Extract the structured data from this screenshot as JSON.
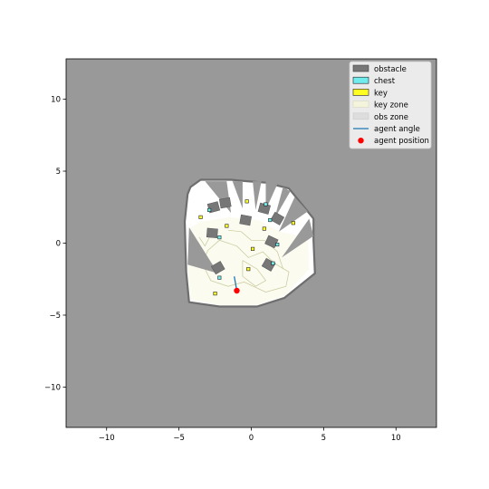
{
  "chart_data": {
    "type": "scatter",
    "title": "",
    "xlabel": "",
    "ylabel": "",
    "xlim": [
      -12.8,
      12.8
    ],
    "ylim": [
      -12.8,
      12.8
    ],
    "x_ticks": [
      -10,
      -5,
      0,
      5,
      10
    ],
    "y_ticks": [
      10,
      5,
      0,
      -5,
      -10
    ],
    "x_tick_labels": [
      "−10",
      "−5",
      "0",
      "5",
      "10"
    ],
    "y_tick_labels": [
      "10",
      "5",
      "0",
      "−5",
      "−10"
    ],
    "grid": false,
    "legend_position": "top-right",
    "legend": [
      {
        "label": "obstacle",
        "kind": "patch",
        "fill": "#777777",
        "stroke": "#444444"
      },
      {
        "label": "chest",
        "kind": "patch",
        "fill": "#70ecec",
        "stroke": "#222222"
      },
      {
        "label": "key",
        "kind": "patch",
        "fill": "#ffff22",
        "stroke": "#222222"
      },
      {
        "label": "key zone",
        "kind": "patch",
        "fill": "#f4f4dc",
        "stroke": "#d8d8c0"
      },
      {
        "label": "obs zone",
        "kind": "patch",
        "fill": "#dddddd",
        "stroke": "#cccccc"
      },
      {
        "label": "agent angle",
        "kind": "line",
        "stroke": "#1f77b4"
      },
      {
        "label": "agent position",
        "kind": "dot",
        "fill": "#ff0000"
      }
    ],
    "colors": {
      "background": "#999999",
      "free_space": "#ffffff",
      "wall": "#6e6e6e",
      "obstacle": "#777777",
      "key_zone_contour": "#c8c89a"
    },
    "boundary": [
      [
        -4.2,
        3.9
      ],
      [
        -3.5,
        4.4
      ],
      [
        -1.4,
        4.4
      ],
      [
        -0.3,
        4.3
      ],
      [
        1.0,
        4.2
      ],
      [
        2.6,
        3.8
      ],
      [
        3.9,
        2.2
      ],
      [
        4.3,
        1.7
      ],
      [
        4.3,
        0.2
      ],
      [
        4.4,
        -2.1
      ],
      [
        2.3,
        -3.8
      ],
      [
        0.4,
        -4.4
      ],
      [
        -2.2,
        -4.4
      ],
      [
        -4.3,
        -4.1
      ],
      [
        -4.5,
        -2.0
      ],
      [
        -4.6,
        1.5
      ],
      [
        -4.4,
        3.4
      ]
    ],
    "key_zone": [
      [
        -4.3,
        1.0
      ],
      [
        -3.5,
        1.5
      ],
      [
        -1.5,
        1.8
      ],
      [
        0.5,
        1.6
      ],
      [
        2.0,
        0.8
      ],
      [
        3.3,
        0.5
      ],
      [
        3.9,
        0.5
      ],
      [
        4.0,
        -1.8
      ],
      [
        2.4,
        -3.6
      ],
      [
        0.4,
        -4.3
      ],
      [
        -2.2,
        -4.3
      ],
      [
        -4.2,
        -3.9
      ],
      [
        -4.4,
        -1.8
      ]
    ],
    "obstacle_zone_wedges": [
      [
        [
          -4.4,
          -1.5
        ],
        [
          -4.3,
          1.1
        ],
        [
          -2.3,
          -2.1
        ]
      ],
      [
        [
          -3.2,
          4.3
        ],
        [
          -1.7,
          4.3
        ],
        [
          -1.4,
          2.1
        ]
      ],
      [
        [
          -1.3,
          4.3
        ],
        [
          -0.6,
          4.3
        ],
        [
          -0.6,
          2.4
        ]
      ],
      [
        [
          0.1,
          4.3
        ],
        [
          0.7,
          4.3
        ],
        [
          0.3,
          2.3
        ]
      ],
      [
        [
          1.0,
          4.3
        ],
        [
          1.8,
          4.1
        ],
        [
          1.0,
          2.3
        ]
      ],
      [
        [
          2.2,
          3.9
        ],
        [
          2.7,
          3.6
        ],
        [
          1.6,
          1.7
        ]
      ],
      [
        [
          3.0,
          3.2
        ],
        [
          3.9,
          2.2
        ],
        [
          1.9,
          0.8
        ]
      ],
      [
        [
          4.0,
          1.7
        ],
        [
          4.3,
          0.5
        ],
        [
          2.1,
          -1.0
        ]
      ]
    ],
    "obstacles": [
      {
        "x": -1.8,
        "y": 2.8,
        "angle": 10
      },
      {
        "x": -2.6,
        "y": 2.5,
        "angle": 15
      },
      {
        "x": -2.7,
        "y": 0.7,
        "angle": -5
      },
      {
        "x": -2.3,
        "y": -1.7,
        "angle": 30
      },
      {
        "x": -0.4,
        "y": 1.6,
        "angle": -10
      },
      {
        "x": 0.9,
        "y": 2.4,
        "angle": -15
      },
      {
        "x": 1.8,
        "y": 1.7,
        "angle": -30
      },
      {
        "x": 1.4,
        "y": 0.1,
        "angle": -25
      },
      {
        "x": 1.2,
        "y": -1.5,
        "angle": -30
      }
    ],
    "chests": [
      {
        "x": -2.9,
        "y": 2.3
      },
      {
        "x": 1.0,
        "y": 2.7
      },
      {
        "x": 1.3,
        "y": 1.6
      },
      {
        "x": -2.2,
        "y": 0.4
      },
      {
        "x": 1.8,
        "y": -0.1
      },
      {
        "x": 1.5,
        "y": -1.4
      },
      {
        "x": -2.2,
        "y": -2.4
      }
    ],
    "keys": [
      {
        "x": -3.5,
        "y": 1.8
      },
      {
        "x": -1.7,
        "y": 1.2
      },
      {
        "x": -0.3,
        "y": 2.9
      },
      {
        "x": 0.9,
        "y": 1.0
      },
      {
        "x": 2.9,
        "y": 1.4
      },
      {
        "x": 0.1,
        "y": -0.4
      },
      {
        "x": -0.2,
        "y": -1.8
      },
      {
        "x": -2.5,
        "y": -3.5
      }
    ],
    "agent": {
      "x": -1.0,
      "y": -3.3,
      "heading_deg": 100
    }
  }
}
